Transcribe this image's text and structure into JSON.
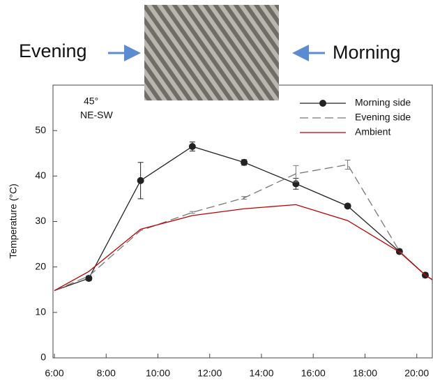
{
  "header": {
    "left": "Evening",
    "right": "Morning"
  },
  "chart_data": {
    "type": "line",
    "annotations": [
      "45°",
      "NE-SW"
    ],
    "y_label": "Temperature (°C)",
    "x": [
      6,
      7.33,
      9.33,
      11.33,
      13.33,
      15.33,
      17.33,
      19.33,
      20.33,
      20.6
    ],
    "series": [
      {
        "name": "Morning side",
        "color": "#222222",
        "dash": false,
        "marker": "circle",
        "values": [
          14.8,
          17.5,
          39,
          46.5,
          43,
          38.3,
          33.4,
          23.4,
          18.2,
          17.2
        ],
        "errors": [
          null,
          0.5,
          4,
          1,
          0.6,
          1.2,
          0.4,
          0.5,
          0.5,
          null
        ]
      },
      {
        "name": "Evening side",
        "color": "#777777",
        "dash": true,
        "values": [
          14.8,
          18,
          28,
          32,
          35.2,
          40.5,
          42.5,
          23.5,
          18.2,
          17.2
        ],
        "errors": [
          null,
          null,
          null,
          0.2,
          0.3,
          1.8,
          1,
          null,
          null,
          null
        ]
      },
      {
        "name": "Ambient",
        "color": "#c00000",
        "dash": false,
        "values": [
          14.8,
          19,
          28.3,
          31.3,
          32.8,
          33.7,
          30.2,
          23.3,
          18.2,
          17.2
        ]
      }
    ],
    "xlim": [
      6,
      20.6
    ],
    "xticks": [
      {
        "value": 6,
        "label": "6:00"
      },
      {
        "value": 8,
        "label": "8:00"
      },
      {
        "value": 10,
        "label": "10:00"
      },
      {
        "value": 12,
        "label": "12:00"
      },
      {
        "value": 14,
        "label": "14:00"
      },
      {
        "value": 16,
        "label": "16:00"
      },
      {
        "value": 18,
        "label": "18:00"
      },
      {
        "value": 20,
        "label": "20:00"
      }
    ],
    "ylim": [
      0,
      60
    ],
    "yticks": [
      0,
      10,
      20,
      30,
      40,
      50
    ],
    "legend": "top-right"
  }
}
